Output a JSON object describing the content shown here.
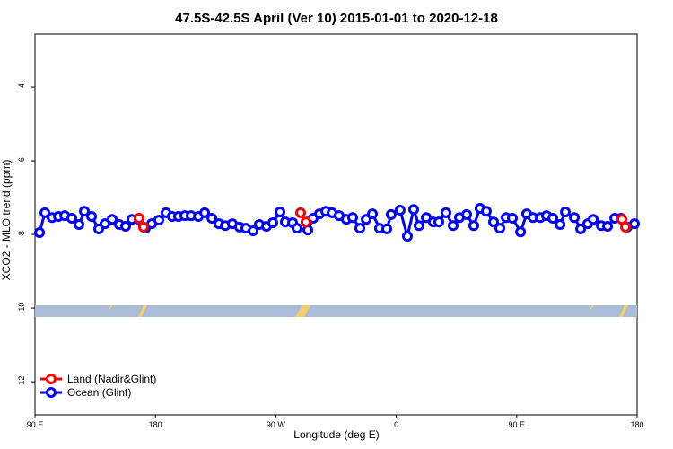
{
  "chart_data": {
    "type": "line",
    "title": "47.5S-42.5S April (Ver 10)   2015-01-01 to 2020-12-18",
    "x_label": "Longitude (deg E)",
    "y_label": "XCO2 - MLO trend (ppm)",
    "xlim": [
      90,
      540
    ],
    "xticks": [
      {
        "value": 90,
        "label": "90 E"
      },
      180,
      {
        "value": 270,
        "label": "90 W"
      },
      {
        "value": 360,
        "label": "0"
      },
      {
        "value": 450,
        "label": "90 E"
      },
      {
        "value": 540,
        "label": "180"
      }
    ],
    "ylim": [
      -12.9,
      -2.56
    ],
    "yticks": [
      -12,
      -10,
      -8,
      -6,
      -4
    ],
    "legend": "bottom-left",
    "series": [
      {
        "name": "Land (Nadir&Glint)",
        "color": "#ff0000",
        "x": [
          167.8,
          171.1,
          288.5,
          292.5,
          528.6,
          531.3
        ],
        "values": [
          -7.56,
          -7.8,
          -7.41,
          -7.66,
          -7.59,
          -7.8
        ]
      },
      {
        "name": "Ocean (Glint)",
        "color": "#0000ff",
        "x": [
          93.4,
          97.4,
          102.8,
          107.5,
          112.2,
          117.5,
          122.9,
          126.9,
          132.3,
          137.6,
          142.3,
          147.7,
          153.0,
          157.7,
          162.4,
          167.8,
          172.5,
          177.2,
          182.5,
          187.9,
          192.6,
          197.3,
          202.0,
          206.7,
          212.1,
          216.8,
          222.2,
          227.5,
          232.2,
          237.5,
          242.9,
          247.6,
          253.0,
          257.6,
          263.0,
          267.7,
          273.1,
          277.1,
          282.5,
          285.8,
          293.9,
          297.9,
          302.6,
          307.3,
          312.0,
          317.3,
          322.7,
          327.4,
          332.8,
          337.5,
          342.2,
          347.5,
          352.9,
          356.2,
          362.9,
          368.3,
          373.0,
          377.0,
          382.4,
          387.7,
          391.8,
          397.1,
          402.5,
          407.2,
          412.6,
          417.9,
          422.6,
          427.3,
          432.7,
          437.4,
          442.1,
          446.8,
          452.9,
          457.5,
          462.2,
          467.6,
          472.3,
          477.0,
          482.4,
          486.4,
          493.1,
          497.8,
          503.1,
          507.2,
          513.2,
          517.9,
          523.3,
          528.0,
          532.6,
          538.0
        ],
        "values": [
          -7.95,
          -7.41,
          -7.54,
          -7.51,
          -7.49,
          -7.56,
          -7.73,
          -7.37,
          -7.51,
          -7.85,
          -7.71,
          -7.59,
          -7.73,
          -7.78,
          -7.59,
          -7.59,
          -7.83,
          -7.71,
          -7.61,
          -7.41,
          -7.51,
          -7.51,
          -7.49,
          -7.49,
          -7.51,
          -7.41,
          -7.56,
          -7.71,
          -7.76,
          -7.71,
          -7.8,
          -7.83,
          -7.9,
          -7.73,
          -7.78,
          -7.68,
          -7.39,
          -7.66,
          -7.68,
          -7.83,
          -7.88,
          -7.56,
          -7.44,
          -7.37,
          -7.41,
          -7.49,
          -7.59,
          -7.54,
          -7.83,
          -7.59,
          -7.44,
          -7.83,
          -7.85,
          -7.46,
          -7.34,
          -8.05,
          -7.32,
          -7.76,
          -7.54,
          -7.66,
          -7.66,
          -7.41,
          -7.76,
          -7.54,
          -7.46,
          -7.76,
          -7.29,
          -7.37,
          -7.66,
          -7.83,
          -7.54,
          -7.56,
          -7.93,
          -7.44,
          -7.54,
          -7.54,
          -7.49,
          -7.56,
          -7.73,
          -7.39,
          -7.54,
          -7.85,
          -7.71,
          -7.59,
          -7.76,
          -7.78,
          -7.56,
          -7.56,
          -7.8,
          -7.71
        ]
      }
    ]
  }
}
